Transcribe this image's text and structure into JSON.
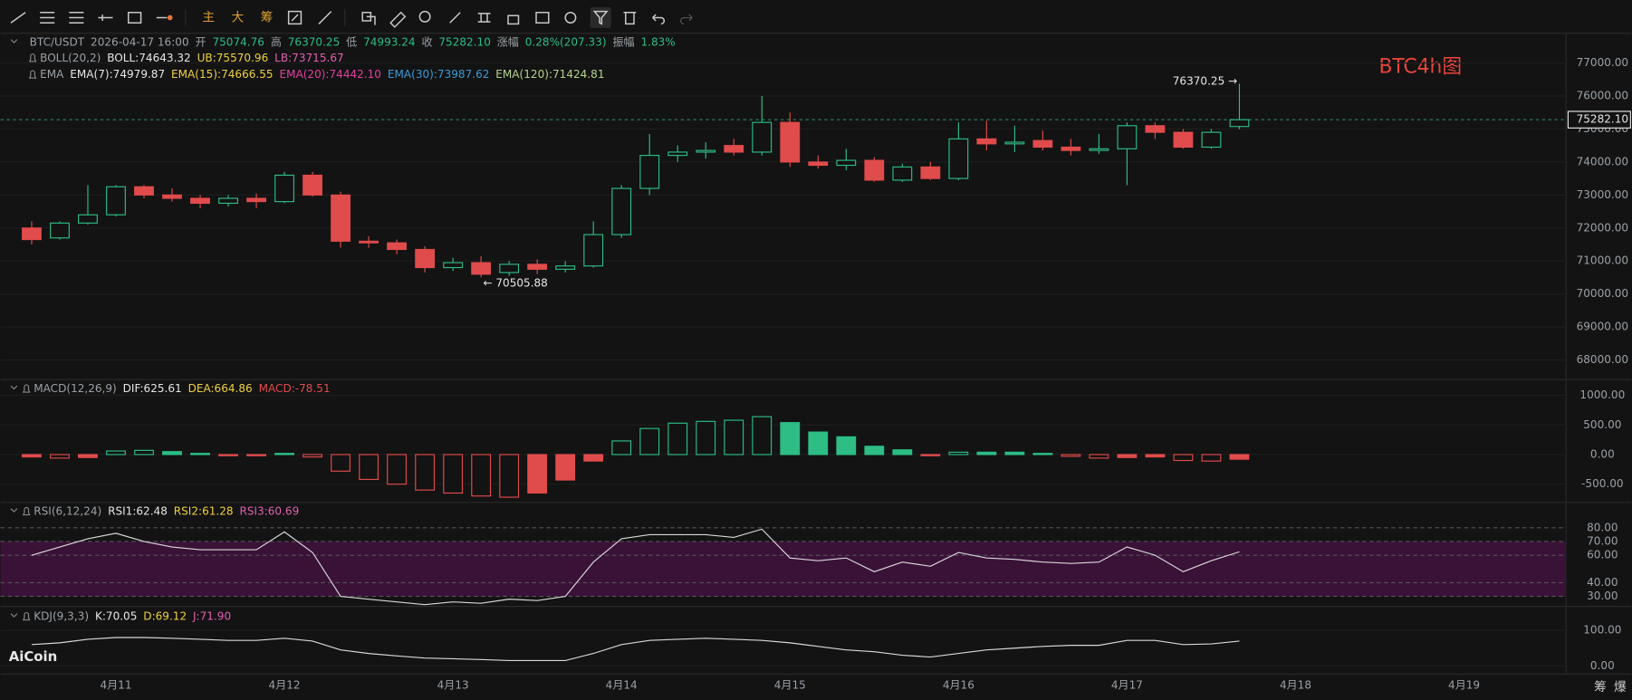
{
  "toolbar": {
    "buttons": [
      "主",
      "大",
      "筹"
    ]
  },
  "info": [
    {
      "text": "BTC/USDT",
      "color": "#9aa0a6"
    },
    {
      "text": "2026-04-17 16:00",
      "color": "#9aa0a6"
    },
    {
      "text": "开",
      "color": "#9aa0a6"
    },
    {
      "text": "75074.76",
      "color": "#2dbd85"
    },
    {
      "text": "高",
      "color": "#9aa0a6"
    },
    {
      "text": "76370.25",
      "color": "#2dbd85"
    },
    {
      "text": "低",
      "color": "#9aa0a6"
    },
    {
      "text": "74993.24",
      "color": "#2dbd85"
    },
    {
      "text": "收",
      "color": "#9aa0a6"
    },
    {
      "text": "75282.10",
      "color": "#2dbd85"
    },
    {
      "text": "涨幅",
      "color": "#9aa0a6"
    },
    {
      "text": "0.28%(207.33)",
      "color": "#2dbd85"
    },
    {
      "text": "振幅",
      "color": "#9aa0a6"
    },
    {
      "text": "1.83%",
      "color": "#2dbd85"
    }
  ],
  "boll": [
    {
      "text": "BOLL(20,2)",
      "color": "#9aa0a6"
    },
    {
      "text": "BOLL:74643.32",
      "color": "#e6e6e6"
    },
    {
      "text": "UB:75570.96",
      "color": "#f0d040"
    },
    {
      "text": "LB:73715.67",
      "color": "#e060b0"
    }
  ],
  "ema": [
    {
      "text": "EMA",
      "color": "#9aa0a6"
    },
    {
      "text": "EMA(7):74979.87",
      "color": "#e6e6e6"
    },
    {
      "text": "EMA(15):74666.55",
      "color": "#f0d040"
    },
    {
      "text": "EMA(20):74442.10",
      "color": "#e040a0"
    },
    {
      "text": "EMA(30):73987.62",
      "color": "#3a9ad9"
    },
    {
      "text": "EMA(120):71424.81",
      "color": "#b5d48a"
    }
  ],
  "watermark": "BTC4h图",
  "logo": "AiCoin",
  "corner": [
    "筹",
    "爆"
  ],
  "chart_data": [
    {
      "type": "candlestick",
      "categories": [
        null,
        null,
        null,
        "4月11",
        null,
        null,
        null,
        null,
        null,
        "4月12",
        null,
        null,
        null,
        null,
        null,
        "4月13",
        null,
        null,
        null,
        null,
        null,
        "4月14",
        null,
        null,
        null,
        null,
        null,
        "4月15",
        null,
        null,
        null,
        null,
        null,
        "4月16",
        null,
        null,
        null,
        null,
        null,
        "4月17",
        null,
        null,
        null,
        null,
        null,
        "4月18",
        null,
        null,
        null,
        null,
        null,
        "4月19",
        null,
        null,
        null
      ],
      "open": [
        72000,
        71700,
        72150,
        72400,
        73250,
        73000,
        72900,
        72750,
        72900,
        72800,
        73600,
        73000,
        71600,
        71550,
        71350,
        70800,
        70950,
        70650,
        70900,
        70750,
        70850,
        71800,
        73200,
        74200,
        74300,
        74500,
        74300,
        75200,
        74000,
        73900,
        74050,
        73450,
        73850,
        73500,
        74700,
        74550,
        74650,
        74450,
        74350,
        74400,
        75100,
        74900,
        74450,
        75074.76,
        null,
        null,
        null,
        null,
        null,
        null,
        null,
        null,
        null,
        null,
        null
      ],
      "high": [
        72200,
        72200,
        73300,
        73300,
        73300,
        73200,
        73000,
        73000,
        73050,
        73700,
        73700,
        73100,
        71750,
        71650,
        71450,
        71100,
        71150,
        71000,
        71050,
        71000,
        72200,
        73300,
        74850,
        74500,
        74600,
        74700,
        76000,
        75500,
        74200,
        74400,
        74150,
        73950,
        74000,
        75200,
        75250,
        75100,
        74950,
        74700,
        74850,
        75200,
        75200,
        75000,
        75000,
        76370.25,
        null,
        null,
        null,
        null,
        null,
        null,
        null,
        null,
        null,
        null,
        null
      ],
      "low": [
        71500,
        71650,
        72100,
        72350,
        72900,
        72800,
        72600,
        72650,
        72600,
        72750,
        72950,
        71400,
        71400,
        71200,
        70650,
        70700,
        70505.88,
        70550,
        70600,
        70650,
        70800,
        71700,
        73000,
        74000,
        74100,
        74200,
        74200,
        73850,
        73800,
        73750,
        73400,
        73400,
        73450,
        73450,
        74350,
        74300,
        74350,
        74200,
        74250,
        73300,
        74700,
        74400,
        74400,
        74993.24,
        null,
        null,
        null,
        null,
        null,
        null,
        null,
        null,
        null,
        null,
        null
      ],
      "close": [
        71650,
        72150,
        72400,
        73250,
        73000,
        72900,
        72750,
        72900,
        72800,
        73600,
        73000,
        71600,
        71550,
        71350,
        70800,
        70950,
        70600,
        70900,
        70750,
        70850,
        71800,
        73200,
        74200,
        74300,
        74350,
        74300,
        75200,
        74000,
        73900,
        74050,
        73450,
        73850,
        73500,
        74700,
        74550,
        74600,
        74450,
        74350,
        74400,
        75100,
        74900,
        74450,
        74900,
        75282.1,
        null,
        null,
        null,
        null,
        null,
        null,
        null,
        null,
        null,
        null,
        null
      ],
      "up_color": "#2dbd85",
      "down_color": "#e04b4b",
      "ylim": [
        67500,
        77900
      ],
      "yticks": [
        {
          "value": 68000,
          "label": "68000.00"
        },
        {
          "value": 69000,
          "label": "69000.00"
        },
        {
          "value": 70000,
          "label": "70000.00"
        },
        {
          "value": 71000,
          "label": "71000.00"
        },
        {
          "value": 72000,
          "label": "72000.00"
        },
        {
          "value": 73000,
          "label": "73000.00"
        },
        {
          "value": 74000,
          "label": "74000.00"
        },
        {
          "value": 75000,
          "label": "75000.00"
        },
        {
          "value": 76000,
          "label": "76000.00"
        },
        {
          "value": 77000,
          "label": "77000.00"
        }
      ],
      "last_price": {
        "value": 75282.1,
        "label": "75282.10"
      },
      "annotations": [
        {
          "value": 76370.25,
          "label": "76370.25 →"
        },
        {
          "value": 70505.88,
          "label": "← 70505.88"
        }
      ]
    },
    {
      "type": "bar",
      "legend": [
        {
          "text": "MACD(12,26,9)",
          "color": "#9aa0a6"
        },
        {
          "text": "DIF:625.61",
          "color": "#e6e6e6"
        },
        {
          "text": "DEA:664.86",
          "color": "#f0d040"
        },
        {
          "text": "MACD:-78.51",
          "color": "#e04b4b"
        }
      ],
      "values": [
        -40,
        -60,
        -50,
        60,
        70,
        50,
        20,
        -20,
        -20,
        20,
        -40,
        -280,
        -420,
        -500,
        -600,
        -650,
        -700,
        -720,
        -650,
        -430,
        -110,
        230,
        440,
        530,
        560,
        580,
        640,
        540,
        380,
        300,
        140,
        80,
        -20,
        40,
        40,
        40,
        20,
        -30,
        -60,
        -50,
        -40,
        -100,
        -110,
        -78.51
      ],
      "up_color": "#2dbd85",
      "down_color": "#e04b4b",
      "ylim": [
        -790,
        1230
      ],
      "yticks": [
        {
          "value": 1000,
          "label": "1000.00"
        },
        {
          "value": 500,
          "label": "500.00"
        },
        {
          "value": 0,
          "label": "0.00"
        },
        {
          "value": -500,
          "label": "-500.00"
        }
      ]
    },
    {
      "type": "line",
      "legend": [
        {
          "text": "RSI(6,12,24)",
          "color": "#9aa0a6"
        },
        {
          "text": "RSI1:62.48",
          "color": "#e6e6e6"
        },
        {
          "text": "RSI2:61.28",
          "color": "#f0d040"
        },
        {
          "text": "RSI3:60.69",
          "color": "#e060b0"
        }
      ],
      "series": [
        {
          "color": "#d8d8d8",
          "values": [
            60,
            66,
            72,
            76,
            70,
            66,
            64,
            64,
            64,
            77,
            62,
            30,
            28,
            26,
            24,
            26,
            25,
            28,
            27,
            30,
            55,
            72,
            75,
            75,
            75,
            73,
            79,
            58,
            56,
            58,
            48,
            55,
            52,
            62,
            58,
            57,
            55,
            54,
            55,
            66,
            60,
            48,
            56,
            62.48
          ]
        }
      ],
      "band": [
        30,
        70
      ],
      "band_color": "#3a1238",
      "ylim": [
        25,
        97
      ],
      "yticks": [
        {
          "value": 80,
          "label": "80.00"
        },
        {
          "value": 70,
          "label": "70.00"
        },
        {
          "value": 60,
          "label": "60.00"
        },
        {
          "value": 40,
          "label": "40.00"
        },
        {
          "value": 30,
          "label": "30.00"
        }
      ]
    },
    {
      "type": "line",
      "legend": [
        {
          "text": "KDJ(9,3,3)",
          "color": "#9aa0a6"
        },
        {
          "text": "K:70.05",
          "color": "#e6e6e6"
        },
        {
          "text": "D:69.12",
          "color": "#f0d040"
        },
        {
          "text": "J:71.90",
          "color": "#e060b0"
        }
      ],
      "series": [
        {
          "color": "#d8d8d8",
          "values": [
            60,
            65,
            75,
            80,
            80,
            78,
            75,
            72,
            72,
            78,
            70,
            45,
            35,
            28,
            22,
            20,
            18,
            15,
            15,
            15,
            35,
            60,
            72,
            75,
            78,
            75,
            72,
            65,
            55,
            45,
            40,
            30,
            25,
            35,
            45,
            50,
            55,
            58,
            58,
            72,
            72,
            60,
            62,
            70.05
          ]
        }
      ],
      "ylim": [
        -20,
        162
      ],
      "yticks": [
        {
          "value": 100,
          "label": "100.00"
        },
        {
          "value": 0,
          "label": "0.00"
        }
      ]
    }
  ]
}
